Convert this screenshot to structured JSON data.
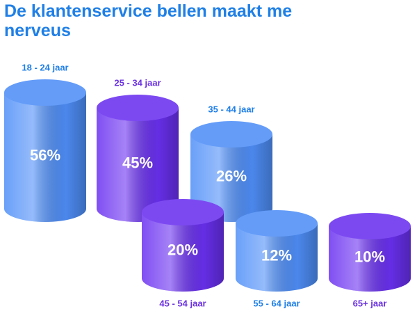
{
  "chart_data": {
    "type": "cylinder",
    "title": "De klantenservice bellen maakt me nerveus",
    "categories": [
      "18 - 24 jaar",
      "25 - 34 jaar",
      "35 - 44 jaar",
      "45 - 54 jaar",
      "55 - 64 jaar",
      "65+ jaar"
    ],
    "values": [
      56,
      45,
      26,
      20,
      12,
      10
    ],
    "value_labels": [
      "56%",
      "45%",
      "26%",
      "20%",
      "12%",
      "10%"
    ],
    "colors": [
      "#4f8ff8",
      "#6a30f0",
      "#4f8ff8",
      "#6a30f0",
      "#4f8ff8",
      "#6a30f0"
    ],
    "label_colors": [
      "#1f7fe6",
      "#6a30e0",
      "#1f7fe6",
      "#6a30e0",
      "#1f7fe6",
      "#6a30e0"
    ]
  }
}
